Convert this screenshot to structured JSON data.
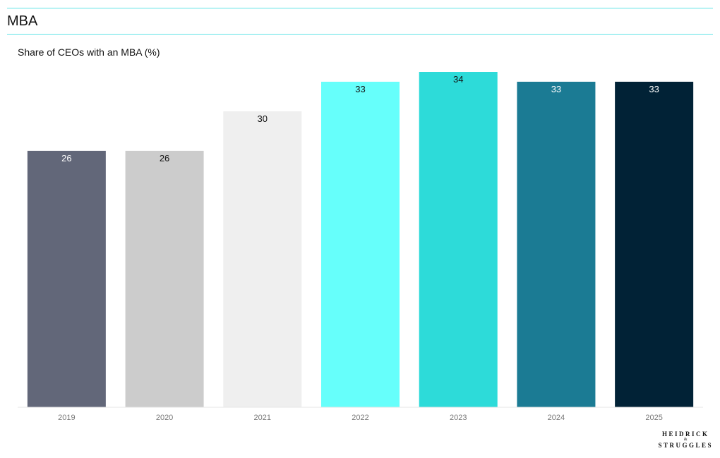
{
  "header": {
    "title": "MBA"
  },
  "logo": {
    "line1": "HEIDRICK",
    "line2": "&",
    "line3": "STRUGGLES"
  },
  "chart_data": {
    "type": "bar",
    "title": "Share of CEOs with an MBA (%)",
    "xlabel": "",
    "ylabel": "",
    "categories": [
      "2019",
      "2020",
      "2021",
      "2022",
      "2023",
      "2024",
      "2025"
    ],
    "values": [
      26,
      26,
      30,
      33,
      34,
      33,
      33
    ],
    "colors": [
      "#626779",
      "#cccccc",
      "#efefef",
      "#66fffb",
      "#2ddbd9",
      "#1b7b94",
      "#012236"
    ],
    "label_colors": [
      "#ffffff",
      "#111111",
      "#111111",
      "#111111",
      "#111111",
      "#ffffff",
      "#ffffff"
    ],
    "ylim": [
      0,
      34
    ],
    "grid": false,
    "legend": "none"
  }
}
